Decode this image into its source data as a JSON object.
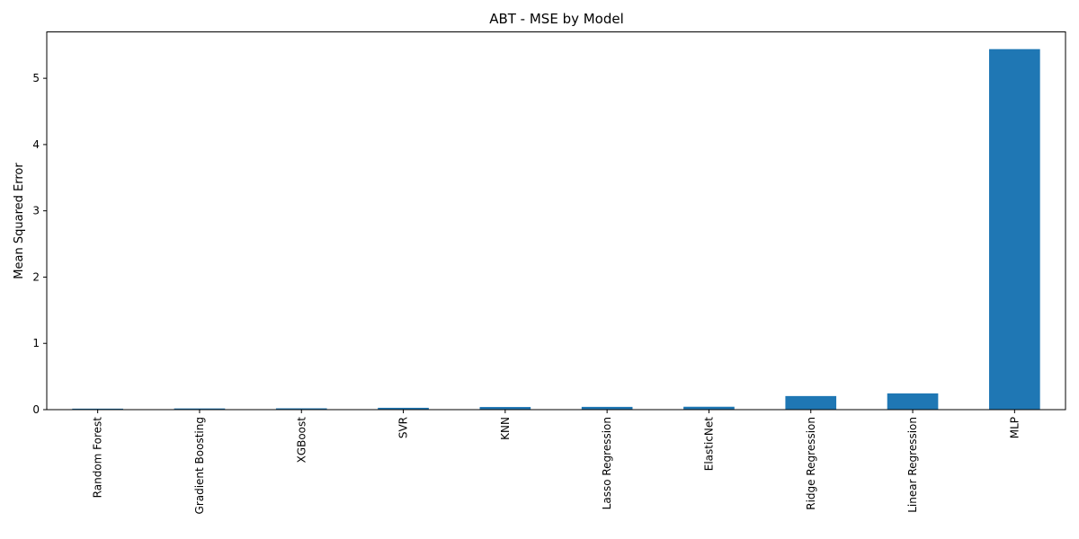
{
  "chart_data": {
    "type": "bar",
    "title": "ABT - MSE by Model",
    "xlabel": "",
    "ylabel": "Mean Squared Error",
    "categories": [
      "Random Forest",
      "Gradient Boosting",
      "XGBoost",
      "SVR",
      "KNN",
      "Lasso Regression",
      "ElasticNet",
      "Ridge Regression",
      "Linear Regression",
      "MLP"
    ],
    "values": [
      0.015,
      0.018,
      0.02,
      0.028,
      0.04,
      0.042,
      0.044,
      0.205,
      0.245,
      5.44
    ],
    "ylim": [
      0,
      5.7
    ],
    "yticks": [
      0,
      1,
      2,
      3,
      4,
      5
    ],
    "grid": false,
    "bar_color": "#1f77b4"
  }
}
